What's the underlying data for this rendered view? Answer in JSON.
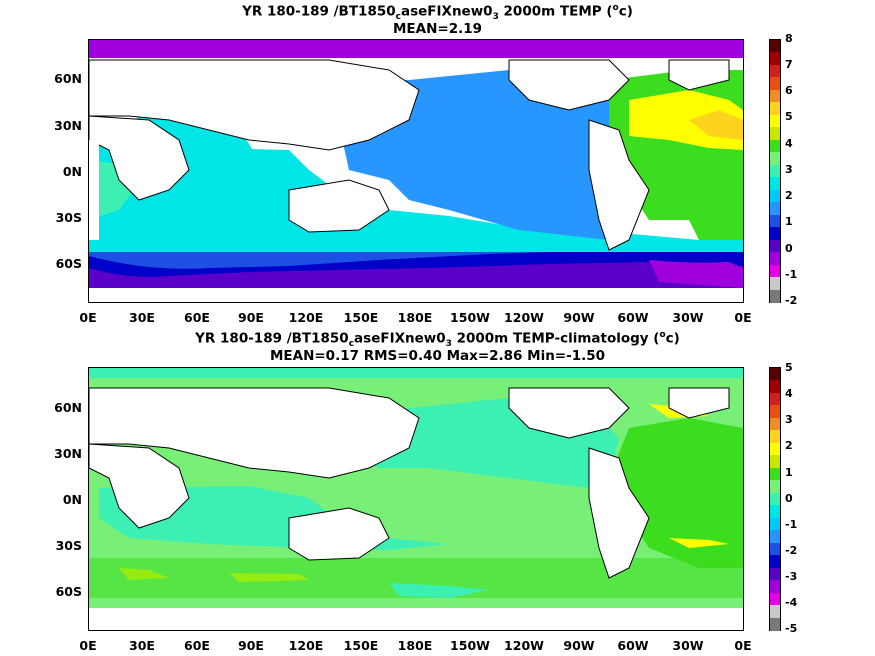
{
  "panel1": {
    "title_parts": [
      "YR 180-189 /BT1850",
      "c",
      "aseFIXnew0",
      "3",
      " 2000m TEMP (",
      "o",
      "c)"
    ],
    "subtitle": "MEAN=2.19",
    "lat_labels": [
      "60N",
      "30N",
      "0N",
      "30S",
      "60S"
    ],
    "lon_labels": [
      "0E",
      "30E",
      "60E",
      "90E",
      "120E",
      "150E",
      "180E",
      "150W",
      "120W",
      "90W",
      "60W",
      "30W",
      "0E"
    ],
    "colorbar_labels": [
      "8",
      "7",
      "6",
      "5",
      "4",
      "3",
      "2",
      "1",
      "0",
      "-1",
      "-2"
    ],
    "colorbar_colors": [
      "#5a0000",
      "#a00000",
      "#d21e1e",
      "#e65014",
      "#f08c28",
      "#ffd21e",
      "#ffff00",
      "#c8e600",
      "#3cdc1e",
      "#78f078",
      "#3cf0b4",
      "#00e6e6",
      "#00c8ff",
      "#2896ff",
      "#1e50e6",
      "#0000c8",
      "#5a00c8",
      "#a000dc",
      "#e600e6",
      "#c8c8c8",
      "#787878"
    ]
  },
  "panel2": {
    "title_parts": [
      "YR 180-189 /BT1850",
      "c",
      "aseFIXnew0",
      "3",
      " 2000m TEMP-climatology (",
      "o",
      "c)"
    ],
    "subtitle": "MEAN=0.17   RMS=0.40   Max=2.86   Min=-1.50",
    "lat_labels": [
      "60N",
      "30N",
      "0N",
      "30S",
      "60S"
    ],
    "lon_labels": [
      "0E",
      "30E",
      "60E",
      "90E",
      "120E",
      "150E",
      "180E",
      "150W",
      "120W",
      "90W",
      "60W",
      "30W",
      "0E"
    ],
    "colorbar_labels": [
      "5",
      "4",
      "3",
      "2",
      "1",
      "0",
      "-1",
      "-2",
      "-3",
      "-4",
      "-5"
    ],
    "colorbar_colors": [
      "#5a0000",
      "#a00000",
      "#d21e1e",
      "#e65014",
      "#f08c28",
      "#ffd21e",
      "#ffff00",
      "#c8e600",
      "#3cdc1e",
      "#78f078",
      "#3cf0b4",
      "#00e6e6",
      "#00c8ff",
      "#2896ff",
      "#1e50e6",
      "#0000c8",
      "#5a00c8",
      "#a000dc",
      "#e600e6",
      "#c8c8c8",
      "#787878"
    ]
  },
  "chart_data": [
    {
      "type": "heatmap",
      "title": "YR 180-189 /BT1850caseFIXnew03 2000m TEMP (oc)",
      "subtitle": "MEAN=2.19",
      "x_ticks": [
        "0E",
        "30E",
        "60E",
        "90E",
        "120E",
        "150E",
        "180E",
        "150W",
        "120W",
        "90W",
        "60W",
        "30W",
        "0E"
      ],
      "y_ticks": [
        "60N",
        "30N",
        "0N",
        "30S",
        "60S"
      ],
      "colorbar_range": [
        -2,
        8
      ],
      "colorbar_ticks": [
        8,
        7,
        6,
        5,
        4,
        3,
        2,
        1,
        0,
        -1,
        -2
      ]
    },
    {
      "type": "heatmap",
      "title": "YR 180-189 /BT1850caseFIXnew03 2000m TEMP-climatology (oc)",
      "subtitle": "MEAN=0.17   RMS=0.40   Max=2.86   Min=-1.50",
      "x_ticks": [
        "0E",
        "30E",
        "60E",
        "90E",
        "120E",
        "150E",
        "180E",
        "150W",
        "120W",
        "90W",
        "60W",
        "30W",
        "0E"
      ],
      "y_ticks": [
        "60N",
        "30N",
        "0N",
        "30S",
        "60S"
      ],
      "colorbar_range": [
        -5,
        5
      ],
      "colorbar_ticks": [
        5,
        4,
        3,
        2,
        1,
        0,
        -1,
        -2,
        -3,
        -4,
        -5
      ]
    }
  ]
}
